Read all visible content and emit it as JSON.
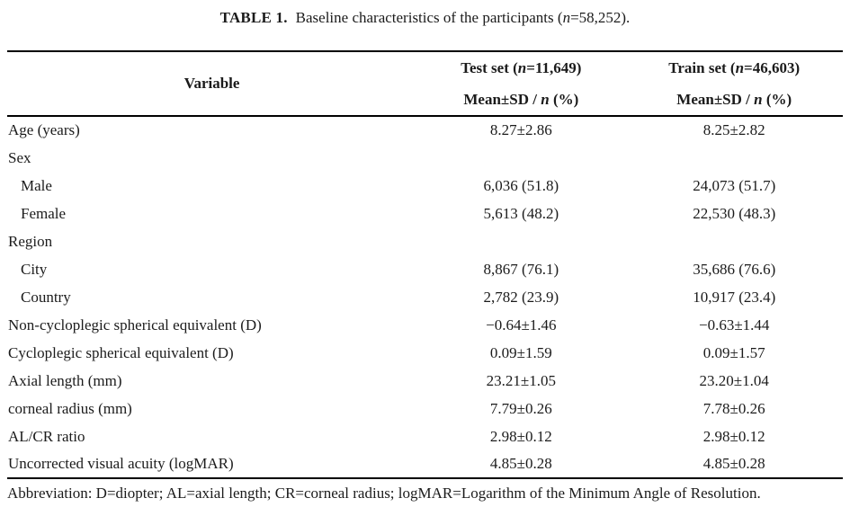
{
  "title": {
    "tag": "TABLE 1.",
    "pre": "Baseline characteristics of the participants (",
    "n": "n",
    "post": "=58,252)."
  },
  "header": {
    "variable_label": "Variable",
    "columns": [
      {
        "name_pre": "Test set (",
        "n": "n",
        "name_post": "=11,649)",
        "stat_pre": "Mean±SD / ",
        "stat_n": "n",
        "stat_post": " (%)"
      },
      {
        "name_pre": "Train set (",
        "n": "n",
        "name_post": "=46,603)",
        "stat_pre": "Mean±SD / ",
        "stat_n": "n",
        "stat_post": " (%)"
      }
    ]
  },
  "rows": [
    {
      "variable": "Age (years)",
      "indent": false,
      "test": "8.27±2.86",
      "train": "8.25±2.82"
    },
    {
      "variable": "Sex",
      "indent": false,
      "test": "",
      "train": ""
    },
    {
      "variable": "Male",
      "indent": true,
      "test": "6,036 (51.8)",
      "train": "24,073 (51.7)"
    },
    {
      "variable": "Female",
      "indent": true,
      "test": "5,613 (48.2)",
      "train": "22,530 (48.3)"
    },
    {
      "variable": "Region",
      "indent": false,
      "test": "",
      "train": ""
    },
    {
      "variable": "City",
      "indent": true,
      "test": "8,867 (76.1)",
      "train": "35,686 (76.6)"
    },
    {
      "variable": "Country",
      "indent": true,
      "test": "2,782 (23.9)",
      "train": "10,917 (23.4)"
    },
    {
      "variable": "Non-cycloplegic spherical equivalent (D)",
      "indent": false,
      "test": "−0.64±1.46",
      "train": "−0.63±1.44"
    },
    {
      "variable": "Cycloplegic spherical equivalent (D)",
      "indent": false,
      "test": "0.09±1.59",
      "train": "0.09±1.57"
    },
    {
      "variable": "Axial length (mm)",
      "indent": false,
      "test": "23.21±1.05",
      "train": "23.20±1.04"
    },
    {
      "variable": "corneal radius (mm)",
      "indent": false,
      "test": "7.79±0.26",
      "train": "7.78±0.26"
    },
    {
      "variable": "AL/CR ratio",
      "indent": false,
      "test": "2.98±0.12",
      "train": "2.98±0.12"
    },
    {
      "variable": "Uncorrected visual acuity (logMAR)",
      "indent": false,
      "test": "4.85±0.28",
      "train": "4.85±0.28"
    }
  ],
  "footnote": "Abbreviation: D=diopter; AL=axial length; CR=corneal radius; logMAR=Logarithm of the Minimum Angle of Resolution."
}
